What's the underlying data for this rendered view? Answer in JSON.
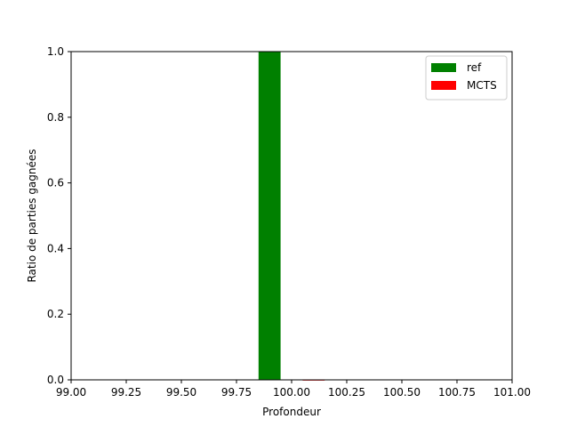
{
  "chart_data": {
    "type": "bar",
    "title": "",
    "xlabel": "Profondeur",
    "ylabel": "Ratio de parties gagnées",
    "xlim": [
      99.0,
      101.0
    ],
    "ylim": [
      0.0,
      1.0
    ],
    "x_ticks": [
      99.0,
      99.25,
      99.5,
      99.75,
      100.0,
      100.25,
      100.5,
      100.75,
      101.0
    ],
    "x_tick_labels": [
      "99.00",
      "99.25",
      "99.50",
      "99.75",
      "100.00",
      "100.25",
      "100.50",
      "100.75",
      "101.00"
    ],
    "y_ticks": [
      0.0,
      0.2,
      0.4,
      0.6,
      0.8,
      1.0
    ],
    "y_tick_labels": [
      "0.0",
      "0.2",
      "0.4",
      "0.6",
      "0.8",
      "1.0"
    ],
    "grid": false,
    "legend_placement": "top-right",
    "series": [
      {
        "name": "ref",
        "color": "#008000",
        "bars": [
          {
            "x": 99.9,
            "width": 0.1,
            "value": 1.0
          }
        ]
      },
      {
        "name": "MCTS",
        "color": "#ff0000",
        "bars": [
          {
            "x": 100.1,
            "width": 0.1,
            "value": 0.0
          }
        ]
      }
    ]
  }
}
